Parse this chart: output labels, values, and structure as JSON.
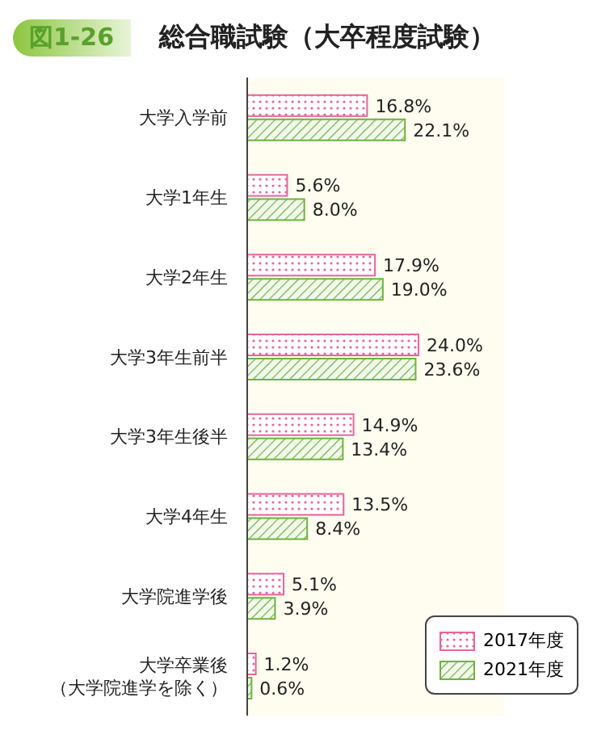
{
  "chart_data": {
    "type": "bar",
    "orientation": "horizontal",
    "title": "総合職試験（大卒程度試験）",
    "annotations": [
      "図1-26"
    ],
    "categories": [
      "大学入学前",
      "大学1年生",
      "大学2年生",
      "大学3年生前半",
      "大学3年生後半",
      "大学4年生",
      "大学院進学後",
      "大学卒業後（大学院進学を除く）"
    ],
    "series": [
      {
        "name": "2017年度",
        "color": "#e8649c",
        "values": [
          16.8,
          5.6,
          17.9,
          24.0,
          14.9,
          13.5,
          5.1,
          1.2
        ],
        "value_labels": [
          "16.8%",
          "5.6%",
          "17.9%",
          "24.0%",
          "14.9%",
          "13.5%",
          "5.1%",
          "1.2%"
        ]
      },
      {
        "name": "2021年度",
        "color": "#6db33f",
        "values": [
          22.1,
          8.0,
          19.0,
          23.6,
          13.4,
          8.4,
          3.9,
          0.6
        ],
        "value_labels": [
          "22.1%",
          "8.0%",
          "19.0%",
          "23.6%",
          "13.4%",
          "8.4%",
          "3.9%",
          "0.6%"
        ]
      }
    ],
    "legend": "bottom right",
    "grid": false
  }
}
